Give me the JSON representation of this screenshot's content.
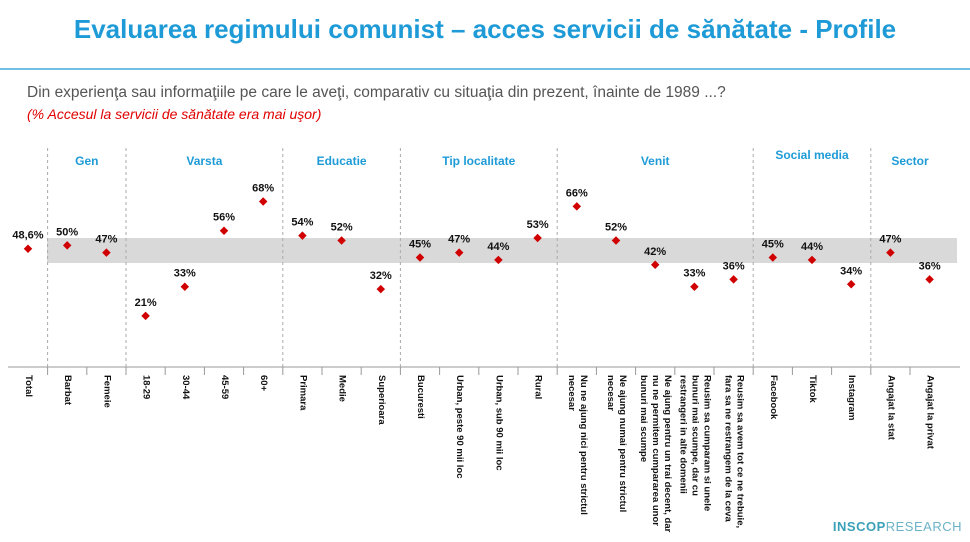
{
  "chart_data": {
    "type": "dot",
    "title": "Evaluarea regimului comunist – acces servicii de sănătate - Profile",
    "subtitle": "Din experienţa sau informaţiile pe care le aveţi, comparativ cu situaţia din prezent, înainte de 1989 ...?",
    "note": "(% Accesul la servicii de sănătate era mai uşor)",
    "groups": [
      "Gen",
      "Varsta",
      "Educatie",
      "Tip localitate",
      "Venit",
      "Social media",
      "Sector"
    ],
    "categories": [
      "Total",
      "Barbat",
      "Femeie",
      "18-29",
      "30-44",
      "45-59",
      "60+",
      "Primara",
      "Medie",
      "Superioara",
      "Bucuresti",
      "Urban, peste 90 mii loc",
      "Urban, sub 90 mii loc",
      "Rural",
      "Nu ne ajung nici pentru strictul necesar",
      "Ne ajung numai pentru strictul necesar",
      "Ne ajung pentru un trai decent, dar nu ne permitem cumpararea unor bunuri mai scumpe",
      "Reusim sa cumparam si unele bunuri mai scumpe, dar cu restrangeri in alte domenii",
      "Reusim sa avem tot ce ne trebuie, fara sa ne restrangem de la ceva",
      "Facebook",
      "Tiktok",
      "Instagram",
      "Angajat la stat",
      "Angajat la privat"
    ],
    "values": [
      48.6,
      50,
      47,
      21,
      33,
      56,
      68,
      54,
      52,
      32,
      45,
      47,
      44,
      53,
      66,
      52,
      42,
      33,
      36,
      45,
      44,
      34,
      47,
      36
    ],
    "value_labels": [
      "48,6%",
      "50%",
      "47%",
      "21%",
      "33%",
      "56%",
      "68%",
      "54%",
      "52%",
      "32%",
      "45%",
      "47%",
      "44%",
      "53%",
      "66%",
      "52%",
      "42%",
      "33%",
      "36%",
      "45%",
      "44%",
      "34%",
      "47%",
      "36%"
    ],
    "color": "#d00000",
    "ylim": [
      0,
      90
    ]
  },
  "logo": {
    "bold": "INSCOP",
    "light": "RESEARCH"
  }
}
